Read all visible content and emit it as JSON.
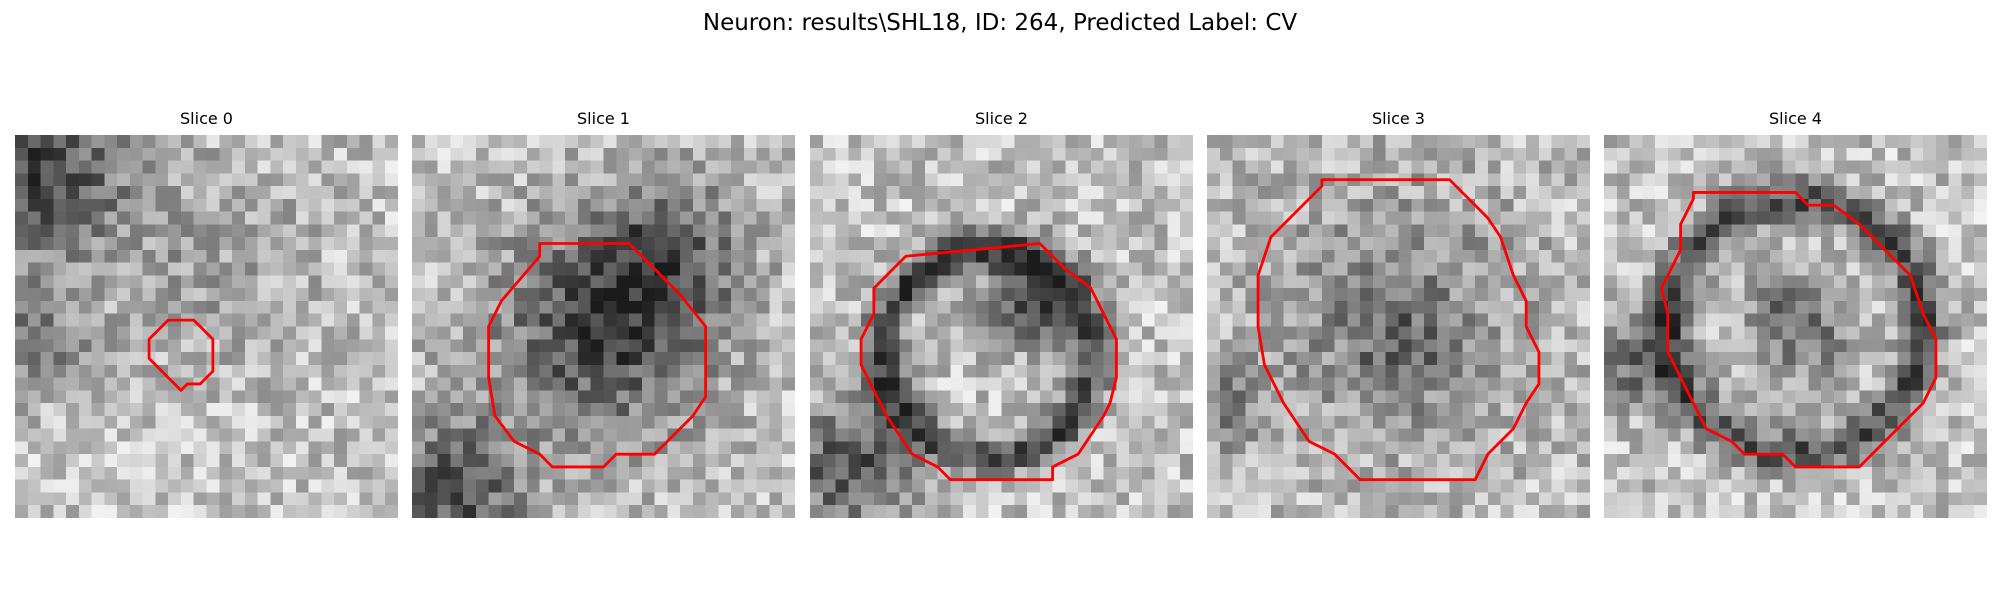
{
  "figure": {
    "title": "Neuron: results\\SHL18, ID: 264, Predicted Label: CV"
  },
  "panels": [
    {
      "title": "Slice 0"
    },
    {
      "title": "Slice 1"
    },
    {
      "title": "Slice 2"
    },
    {
      "title": "Slice 3"
    },
    {
      "title": "Slice 4"
    }
  ],
  "colors": {
    "contour": "#ff0000",
    "background": "#ffffff"
  }
}
